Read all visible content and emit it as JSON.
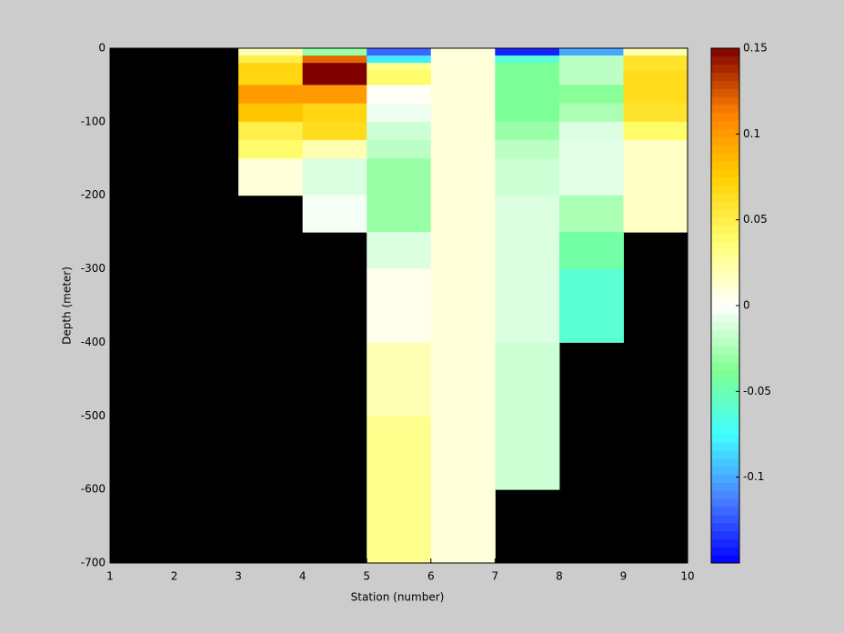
{
  "chart_data": {
    "type": "heatmap",
    "xlabel": "Station (number)",
    "ylabel": "Depth (meter)",
    "x": [
      1,
      2,
      3,
      4,
      5,
      6,
      7,
      8,
      9,
      10
    ],
    "y": [
      0,
      -10,
      -20,
      -30,
      -50,
      -75,
      -100,
      -125,
      -150,
      -200,
      -250,
      -300,
      -400,
      -500,
      -600,
      -700
    ],
    "values": [
      [
        null,
        null,
        0.02,
        -0.03,
        -0.12,
        0.01,
        -0.14,
        -0.1,
        0.02
      ],
      [
        null,
        null,
        0.05,
        0.12,
        -0.08,
        0.01,
        -0.06,
        -0.02,
        0.06
      ],
      [
        null,
        null,
        0.07,
        0.15,
        0.03,
        0.01,
        -0.04,
        -0.02,
        0.06
      ],
      [
        null,
        null,
        0.07,
        0.15,
        0.04,
        0.01,
        -0.04,
        -0.02,
        0.065
      ],
      [
        null,
        null,
        0.1,
        0.1,
        0.002,
        0.01,
        -0.04,
        -0.035,
        0.065
      ],
      [
        null,
        null,
        0.08,
        0.07,
        -0.005,
        0.01,
        -0.04,
        -0.025,
        0.06
      ],
      [
        null,
        null,
        0.05,
        0.065,
        -0.015,
        0.01,
        -0.03,
        -0.01,
        0.04
      ],
      [
        null,
        null,
        0.04,
        0.02,
        -0.02,
        0.01,
        -0.02,
        -0.008,
        0.015
      ],
      [
        null,
        null,
        0.01,
        -0.01,
        -0.03,
        0.01,
        -0.015,
        -0.008,
        0.015
      ],
      [
        null,
        null,
        null,
        -0.003,
        -0.03,
        0.01,
        -0.01,
        -0.025,
        0.015
      ],
      [
        null,
        null,
        null,
        null,
        -0.01,
        0.01,
        -0.01,
        -0.045,
        null
      ],
      [
        null,
        null,
        null,
        null,
        0.005,
        0.01,
        -0.01,
        -0.06,
        null
      ],
      [
        null,
        null,
        null,
        null,
        0.02,
        0.01,
        -0.015,
        null,
        null
      ],
      [
        null,
        null,
        null,
        null,
        0.03,
        0.01,
        -0.015,
        null,
        null
      ],
      [
        null,
        null,
        null,
        null,
        0.03,
        0.01,
        null,
        null,
        null
      ]
    ],
    "xlim": [
      1,
      10
    ],
    "xticks": [
      1,
      2,
      3,
      4,
      5,
      6,
      7,
      8,
      9,
      10
    ],
    "ylim": [
      -700,
      0
    ],
    "yticks": [
      0,
      -100,
      -200,
      -300,
      -400,
      -500,
      -600,
      -700
    ],
    "zlim": [
      -0.15,
      0.15
    ],
    "colorbar_ticks": [
      -0.1,
      -0.05,
      0,
      0.05,
      0.1,
      0.15
    ],
    "colormap": [
      "#0000ff",
      "#4a80ff",
      "#40ffff",
      "#80ff90",
      "#ffffff",
      "#ffff70",
      "#ffd000",
      "#ff8000",
      "#800000"
    ],
    "nan_color": "#000000"
  }
}
